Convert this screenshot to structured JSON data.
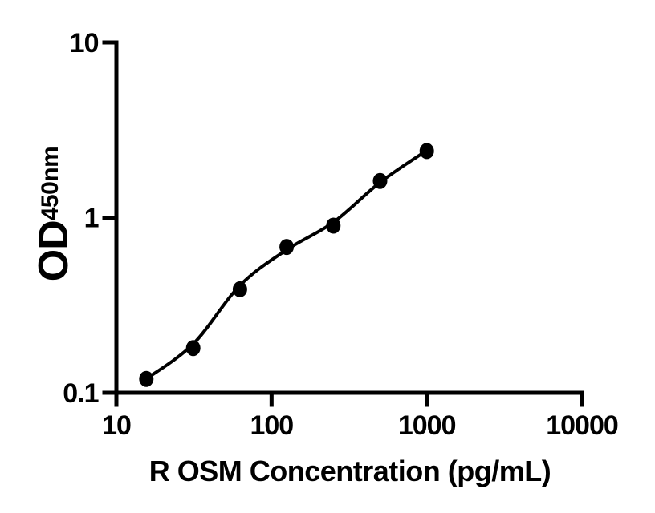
{
  "chart_data": {
    "type": "scatter",
    "title": "",
    "xlabel": "R OSM Concentration (pg/mL)",
    "ylabel_main": "OD",
    "ylabel_sub": "450nm",
    "x_scale": "log10",
    "y_scale": "log10",
    "xlim": [
      10,
      10000
    ],
    "ylim": [
      0.1,
      10
    ],
    "x_ticks": [
      {
        "value": 10,
        "label": "10"
      },
      {
        "value": 100,
        "label": "100"
      },
      {
        "value": 1000,
        "label": "1000"
      },
      {
        "value": 10000,
        "label": "10000"
      }
    ],
    "y_ticks": [
      {
        "value": 10,
        "label": "10"
      },
      {
        "value": 1,
        "label": "1"
      },
      {
        "value": 0.1,
        "label": "0.1"
      }
    ],
    "grid": false,
    "legend": "none",
    "colors": {
      "foreground": "#000000",
      "background": "#ffffff"
    },
    "series": [
      {
        "name": "standard-curve-fit",
        "type": "line",
        "color": "#000000",
        "points": [
          {
            "x": 15.6,
            "y": 0.12
          },
          {
            "x": 31.25,
            "y": 0.19
          },
          {
            "x": 62.5,
            "y": 0.41
          },
          {
            "x": 125,
            "y": 0.655
          },
          {
            "x": 250,
            "y": 0.94
          },
          {
            "x": 500,
            "y": 1.59
          },
          {
            "x": 1000,
            "y": 2.42
          }
        ]
      },
      {
        "name": "standard-points",
        "type": "scatter",
        "marker": "filled-circle",
        "color": "#000000",
        "points": [
          {
            "x": 15.6,
            "y": 0.12
          },
          {
            "x": 31.25,
            "y": 0.18
          },
          {
            "x": 62.5,
            "y": 0.39
          },
          {
            "x": 125,
            "y": 0.68
          },
          {
            "x": 250,
            "y": 0.9
          },
          {
            "x": 500,
            "y": 1.62
          },
          {
            "x": 1000,
            "y": 2.4
          }
        ]
      }
    ]
  }
}
